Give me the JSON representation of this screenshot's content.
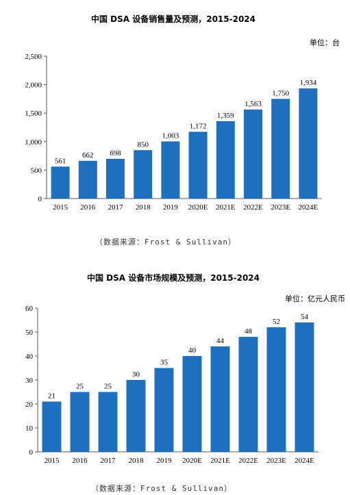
{
  "chart_data": [
    {
      "type": "bar",
      "title": "中国 DSA 设备销售量及预测，2015-2024",
      "unit": "单位：台",
      "categories": [
        "2015",
        "2016",
        "2017",
        "2018",
        "2019",
        "2020E",
        "2021E",
        "2022E",
        "2023E",
        "2024E"
      ],
      "values": [
        561,
        662,
        698,
        850,
        1003,
        1172,
        1359,
        1563,
        1750,
        1934
      ],
      "value_labels": [
        "561",
        "662",
        "698",
        "850",
        "1,003",
        "1,172",
        "1,359",
        "1,563",
        "1,750",
        "1,934"
      ],
      "ylim": [
        0,
        2500
      ],
      "yticks": [
        0,
        500,
        1000,
        1500,
        2000,
        2500
      ],
      "ytick_labels": [
        "0",
        "500",
        "1,000",
        "1,500",
        "2,000",
        "2,500"
      ],
      "grid": false,
      "bar_color": "#1f6fbf",
      "source": "（数据来源：Frost & Sullivan）"
    },
    {
      "type": "bar",
      "title": "中国 DSA 设备市场规模及预测，2015-2024",
      "unit": "单位：亿元人民币",
      "categories": [
        "2015",
        "2016",
        "2017",
        "2018",
        "2019",
        "2020E",
        "2021E",
        "2022E",
        "2023E",
        "2024E"
      ],
      "values": [
        21,
        25,
        25,
        30,
        35,
        40,
        44,
        48,
        52,
        54
      ],
      "value_labels": [
        "21",
        "25",
        "25",
        "30",
        "35",
        "40",
        "44",
        "48",
        "52",
        "54"
      ],
      "ylim": [
        0,
        60
      ],
      "yticks": [
        0,
        10,
        20,
        30,
        40,
        50,
        60
      ],
      "ytick_labels": [
        "0",
        "10",
        "20",
        "30",
        "40",
        "50",
        "60"
      ],
      "grid": false,
      "bar_color": "#1f6fbf",
      "source": "（数据来源：Frost & Sullivan）"
    }
  ]
}
